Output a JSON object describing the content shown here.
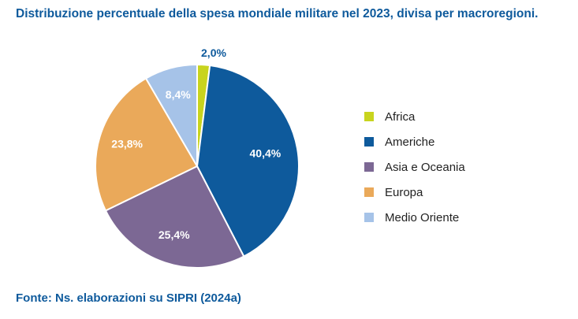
{
  "title": "Distribuzione percentuale della spesa mondiale militare nel 2023, divisa per macroregioni.",
  "source": "Fonte: Ns. elaborazioni su SIPRI (2024a)",
  "chart_data": {
    "type": "pie",
    "title": "Distribuzione percentuale della spesa mondiale militare nel 2023, divisa per macroregioni.",
    "legend_position": "right",
    "slices": [
      {
        "label": "Africa",
        "value": 2.0,
        "value_label": "2,0%",
        "color": "#c8d41e",
        "text_color": "#0e5a9c"
      },
      {
        "label": "Americhe",
        "value": 40.4,
        "value_label": "40,4%",
        "color": "#0e5a9c",
        "text_color": "#ffffff"
      },
      {
        "label": "Asia e Oceania",
        "value": 25.4,
        "value_label": "25,4%",
        "color": "#7c6894",
        "text_color": "#ffffff"
      },
      {
        "label": "Europa",
        "value": 23.8,
        "value_label": "23,8%",
        "color": "#eaa95a",
        "text_color": "#ffffff"
      },
      {
        "label": "Medio Oriente",
        "value": 8.4,
        "value_label": "8,4%",
        "color": "#a6c3e8",
        "text_color": "#ffffff"
      }
    ]
  }
}
